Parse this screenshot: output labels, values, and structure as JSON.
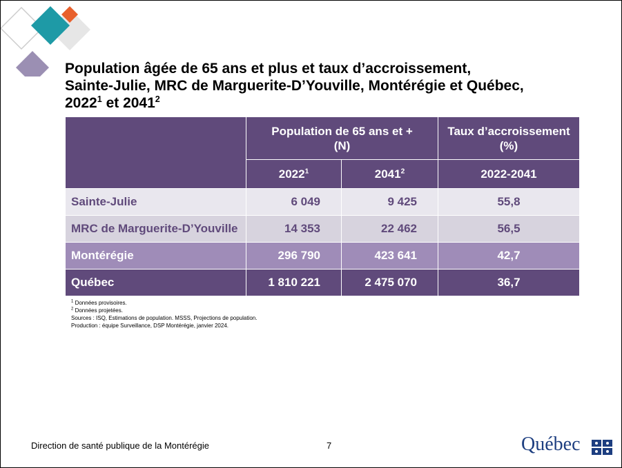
{
  "title": {
    "line1": "Population âgée de 65 ans et plus et taux d’accroissement,",
    "line2": "Sainte-Julie, MRC de Marguerite-D’Youville, Montérégie et Québec,",
    "line3": [
      "2022",
      "1",
      " et 2041",
      "2"
    ]
  },
  "table": {
    "group_headers": [
      [
        "Population de 65 ans et +",
        "(N)"
      ],
      [
        "Taux d’accroissement",
        "(%)"
      ]
    ],
    "sub_headers": [
      [
        "2022",
        "1"
      ],
      [
        "2041",
        "2"
      ],
      [
        "2022-2041"
      ]
    ],
    "rows": [
      [
        "Sainte-Julie",
        "6 049",
        "9 425",
        "55,8"
      ],
      [
        "MRC de Marguerite-D’Youville",
        "14 353",
        "22 462",
        "56,5"
      ],
      [
        "Montérégie",
        "296 790",
        "423 641",
        "42,7"
      ],
      [
        "Québec",
        "1 810 221",
        "2 475 070",
        "36,7"
      ]
    ]
  },
  "footnotes": [
    [
      "1",
      " Données provisoires."
    ],
    [
      "2",
      " Données projetées."
    ],
    [
      "Sources : ISQ, Estimations de population. MSSS, Projections de population."
    ],
    [
      "Production : équipe Surveillance, DSP Montérégie, janvier 2024."
    ]
  ],
  "footer": {
    "organization": "Direction de santé publique de la Montérégie",
    "page": "7",
    "logo": "Québec"
  }
}
